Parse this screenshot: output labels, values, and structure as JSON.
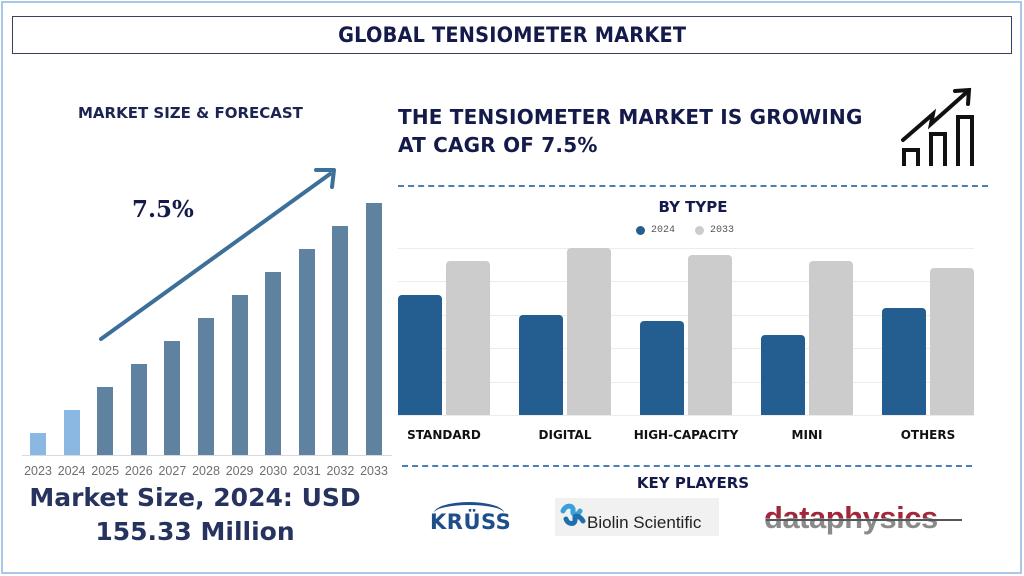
{
  "header": {
    "title": "GLOBAL TENSIOMETER MARKET"
  },
  "left_panel": {
    "title": "MARKET SIZE & FORECAST",
    "cagr_label": "7.5%",
    "market_size_line1": "Market Size, 2024: USD",
    "market_size_line2": "155.33 Million"
  },
  "right_panel": {
    "headline_line1": "THE TENSIOMETER MARKET IS GROWING",
    "headline_line2": "AT CAGR OF 7.5%",
    "icon": "growth-chart-icon",
    "by_type_title": "BY TYPE",
    "legend": [
      {
        "label": "2024",
        "color": "#245d8f"
      },
      {
        "label": "2033",
        "color": "#cccccc"
      }
    ],
    "key_players_title": "KEY PLAYERS",
    "key_players": [
      "KRÜSS",
      "Biolin Scientific",
      "dataphysics"
    ]
  },
  "colors": {
    "title_text": "#141a4a",
    "forecast_bar_actual": "#8bb8e2",
    "forecast_bar_projected": "#5f82a1",
    "arrow": "#3c6f99",
    "bar_2024": "#245d8f",
    "bar_2033": "#cccccc",
    "divider": "#4a7fb5"
  },
  "chart_data": [
    {
      "type": "bar",
      "title": "MARKET SIZE & FORECAST",
      "categories": [
        "2023",
        "2024",
        "2025",
        "2026",
        "2027",
        "2028",
        "2029",
        "2030",
        "2031",
        "2032",
        "2033"
      ],
      "values": [
        22,
        45,
        68,
        91,
        114,
        137,
        160,
        183,
        206,
        229,
        252
      ],
      "value_units": "relative bar height (px), no axis shown",
      "highlighted_actual": [
        "2023",
        "2024"
      ],
      "annotation": "7.5% (CAGR arrow)",
      "xlabel": "",
      "ylabel": "",
      "grid": false,
      "legend": false
    },
    {
      "type": "bar",
      "title": "BY TYPE",
      "categories": [
        "STANDARD",
        "DIGITAL",
        "HIGH-CAPACITY",
        "MINI",
        "OTHERS"
      ],
      "series": [
        {
          "name": "2024",
          "values": [
            3.6,
            3.0,
            2.8,
            2.4,
            3.2
          ]
        },
        {
          "name": "2033",
          "values": [
            4.6,
            5.0,
            4.8,
            4.6,
            4.4
          ]
        }
      ],
      "value_units": "relative (gridline units, 5 gridlines, no tick labels)",
      "ylim": [
        0,
        5
      ],
      "grid": true,
      "legend_position": "top"
    }
  ]
}
